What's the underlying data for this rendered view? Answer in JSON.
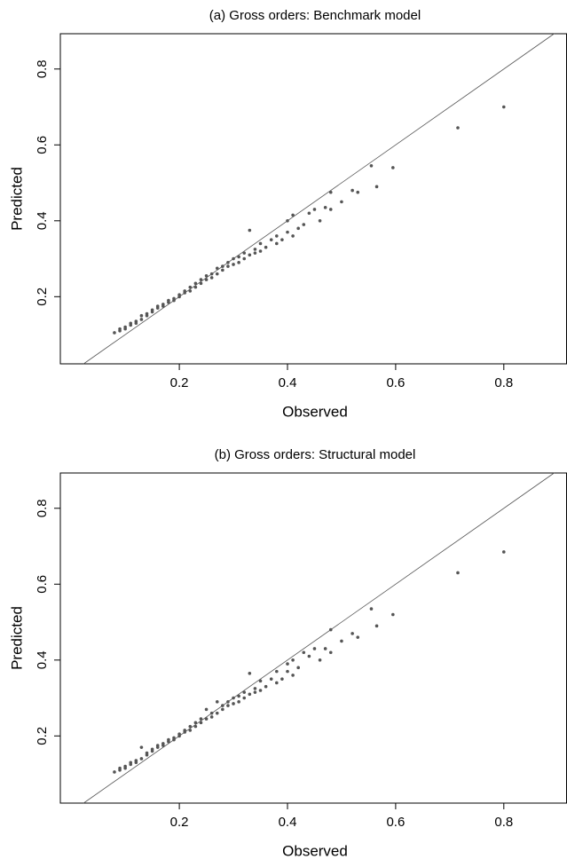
{
  "chart_data": [
    {
      "type": "scatter",
      "title": "(a) Gross orders: Benchmark model",
      "x_label": "Observed",
      "y_label": "Predicted",
      "color": "#555555",
      "xlim": [
        -0.02,
        0.916
      ],
      "ylim": [
        0.023,
        0.893
      ],
      "xticks": [
        0.2,
        0.4,
        0.6,
        0.8
      ],
      "yticks": [
        0.2,
        0.4,
        0.6,
        0.8
      ],
      "x": [
        0.08,
        0.09,
        0.09,
        0.1,
        0.1,
        0.11,
        0.11,
        0.12,
        0.12,
        0.13,
        0.13,
        0.14,
        0.14,
        0.15,
        0.15,
        0.16,
        0.16,
        0.17,
        0.17,
        0.18,
        0.18,
        0.19,
        0.19,
        0.2,
        0.2,
        0.21,
        0.21,
        0.22,
        0.22,
        0.23,
        0.23,
        0.24,
        0.24,
        0.25,
        0.25,
        0.26,
        0.26,
        0.27,
        0.27,
        0.28,
        0.28,
        0.29,
        0.29,
        0.3,
        0.3,
        0.31,
        0.31,
        0.32,
        0.32,
        0.33,
        0.33,
        0.34,
        0.34,
        0.35,
        0.35,
        0.36,
        0.37,
        0.38,
        0.38,
        0.39,
        0.4,
        0.4,
        0.41,
        0.41,
        0.42,
        0.43,
        0.44,
        0.45,
        0.46,
        0.47,
        0.48,
        0.48,
        0.5,
        0.52,
        0.53,
        0.555,
        0.565,
        0.595,
        0.715,
        0.8
      ],
      "values": [
        0.105,
        0.11,
        0.115,
        0.12,
        0.115,
        0.125,
        0.13,
        0.135,
        0.13,
        0.14,
        0.15,
        0.15,
        0.155,
        0.16,
        0.165,
        0.17,
        0.175,
        0.175,
        0.18,
        0.185,
        0.19,
        0.19,
        0.195,
        0.2,
        0.205,
        0.21,
        0.215,
        0.215,
        0.225,
        0.225,
        0.235,
        0.235,
        0.245,
        0.245,
        0.255,
        0.25,
        0.26,
        0.26,
        0.275,
        0.27,
        0.28,
        0.28,
        0.29,
        0.285,
        0.3,
        0.29,
        0.305,
        0.3,
        0.315,
        0.31,
        0.375,
        0.315,
        0.325,
        0.32,
        0.34,
        0.33,
        0.35,
        0.34,
        0.36,
        0.35,
        0.37,
        0.4,
        0.415,
        0.36,
        0.38,
        0.39,
        0.42,
        0.43,
        0.4,
        0.435,
        0.475,
        0.43,
        0.45,
        0.48,
        0.475,
        0.545,
        0.49,
        0.54,
        0.645,
        0.7
      ]
    },
    {
      "type": "scatter",
      "title": "(b) Gross orders: Structural model",
      "x_label": "Observed",
      "y_label": "Predicted",
      "color": "#555555",
      "xlim": [
        -0.02,
        0.916
      ],
      "ylim": [
        0.023,
        0.893
      ],
      "xticks": [
        0.2,
        0.4,
        0.6,
        0.8
      ],
      "yticks": [
        0.2,
        0.4,
        0.6,
        0.8
      ],
      "x": [
        0.08,
        0.09,
        0.09,
        0.1,
        0.1,
        0.11,
        0.11,
        0.12,
        0.12,
        0.13,
        0.13,
        0.14,
        0.14,
        0.15,
        0.15,
        0.16,
        0.16,
        0.17,
        0.17,
        0.18,
        0.18,
        0.19,
        0.19,
        0.2,
        0.2,
        0.21,
        0.21,
        0.22,
        0.22,
        0.23,
        0.23,
        0.24,
        0.24,
        0.25,
        0.25,
        0.26,
        0.26,
        0.27,
        0.27,
        0.28,
        0.28,
        0.29,
        0.29,
        0.3,
        0.3,
        0.31,
        0.31,
        0.32,
        0.32,
        0.33,
        0.33,
        0.34,
        0.34,
        0.35,
        0.35,
        0.36,
        0.37,
        0.38,
        0.38,
        0.39,
        0.4,
        0.4,
        0.41,
        0.41,
        0.42,
        0.43,
        0.44,
        0.45,
        0.46,
        0.47,
        0.48,
        0.48,
        0.5,
        0.52,
        0.53,
        0.555,
        0.565,
        0.595,
        0.715,
        0.8
      ],
      "values": [
        0.105,
        0.11,
        0.115,
        0.12,
        0.115,
        0.125,
        0.13,
        0.135,
        0.13,
        0.14,
        0.17,
        0.15,
        0.155,
        0.16,
        0.165,
        0.17,
        0.175,
        0.175,
        0.18,
        0.185,
        0.19,
        0.19,
        0.195,
        0.2,
        0.205,
        0.21,
        0.215,
        0.215,
        0.225,
        0.225,
        0.235,
        0.235,
        0.245,
        0.245,
        0.27,
        0.25,
        0.26,
        0.26,
        0.29,
        0.27,
        0.28,
        0.28,
        0.29,
        0.285,
        0.3,
        0.29,
        0.305,
        0.3,
        0.315,
        0.31,
        0.365,
        0.315,
        0.325,
        0.32,
        0.345,
        0.33,
        0.35,
        0.34,
        0.37,
        0.35,
        0.37,
        0.39,
        0.4,
        0.36,
        0.38,
        0.42,
        0.41,
        0.43,
        0.4,
        0.43,
        0.48,
        0.42,
        0.45,
        0.47,
        0.46,
        0.535,
        0.49,
        0.52,
        0.63,
        0.685
      ]
    }
  ]
}
